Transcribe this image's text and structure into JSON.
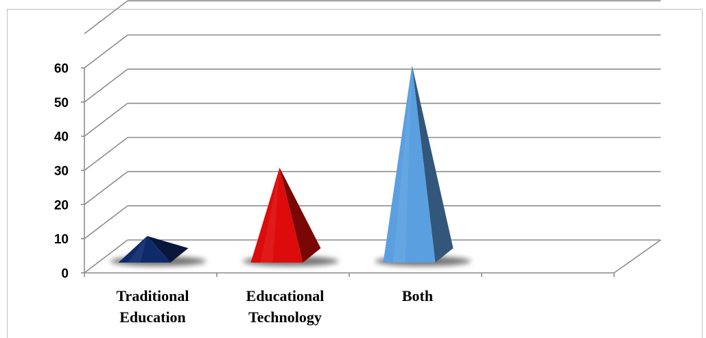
{
  "chart_data": {
    "type": "bar",
    "style": "3d-pyramid",
    "categories": [
      [
        "Traditional",
        "Education"
      ],
      [
        "Educational",
        "Technology"
      ],
      [
        "Both"
      ]
    ],
    "values": [
      12,
      32,
      62
    ],
    "colors": [
      "#0f2a6b",
      "#dd0b0b",
      "#5a9fe0"
    ],
    "yticks": [
      0,
      10,
      20,
      30,
      40,
      50,
      60
    ],
    "ylim": [
      0,
      60
    ],
    "title": "",
    "xlabel": "",
    "ylabel": "",
    "grid": true,
    "legend": "none"
  }
}
